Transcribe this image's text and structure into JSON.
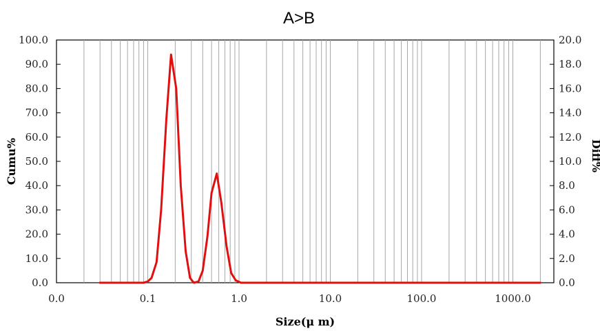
{
  "chart_data": {
    "type": "line",
    "title": "A>B",
    "xlabel": "Size(μ m)",
    "ylabel_left": "Cumu%",
    "ylabel_right": "Diff%",
    "x_scale": "log",
    "xlim": [
      0.01,
      3000
    ],
    "ylim_left": [
      0,
      100
    ],
    "ylim_right": [
      0,
      20
    ],
    "x_tick_values": [
      0.01,
      0.1,
      1,
      10,
      100,
      1000
    ],
    "x_tick_labels": [
      "0.0",
      "0.1",
      "1.0",
      "10.0",
      "100.0",
      "1000.0"
    ],
    "y_left_tick_labels": [
      "0.0",
      "10.0",
      "20.0",
      "30.0",
      "40.0",
      "50.0",
      "60.0",
      "70.0",
      "80.0",
      "90.0",
      "100.0"
    ],
    "y_right_tick_labels": [
      "0.0",
      "2.0",
      "4.0",
      "6.0",
      "8.0",
      "10.0",
      "12.0",
      "14.0",
      "16.0",
      "18.0",
      "20.0"
    ],
    "grid": "vertical",
    "color": "#e01010",
    "series": [
      {
        "axis": "right",
        "x": [
          0.03,
          0.09,
          0.1,
          0.11,
          0.125,
          0.14,
          0.16,
          0.18,
          0.205,
          0.23,
          0.26,
          0.29,
          0.32,
          0.36,
          0.4,
          0.45,
          0.5,
          0.57,
          0.64,
          0.73,
          0.82,
          0.92,
          1.05,
          2000
        ],
        "y": [
          0,
          0,
          0.1,
          0.4,
          1.7,
          6.0,
          13.5,
          18.8,
          16.0,
          8.0,
          2.6,
          0.4,
          0.0,
          0.1,
          1.0,
          3.8,
          7.4,
          9.0,
          6.6,
          3.0,
          0.8,
          0.2,
          0,
          0
        ]
      }
    ]
  }
}
